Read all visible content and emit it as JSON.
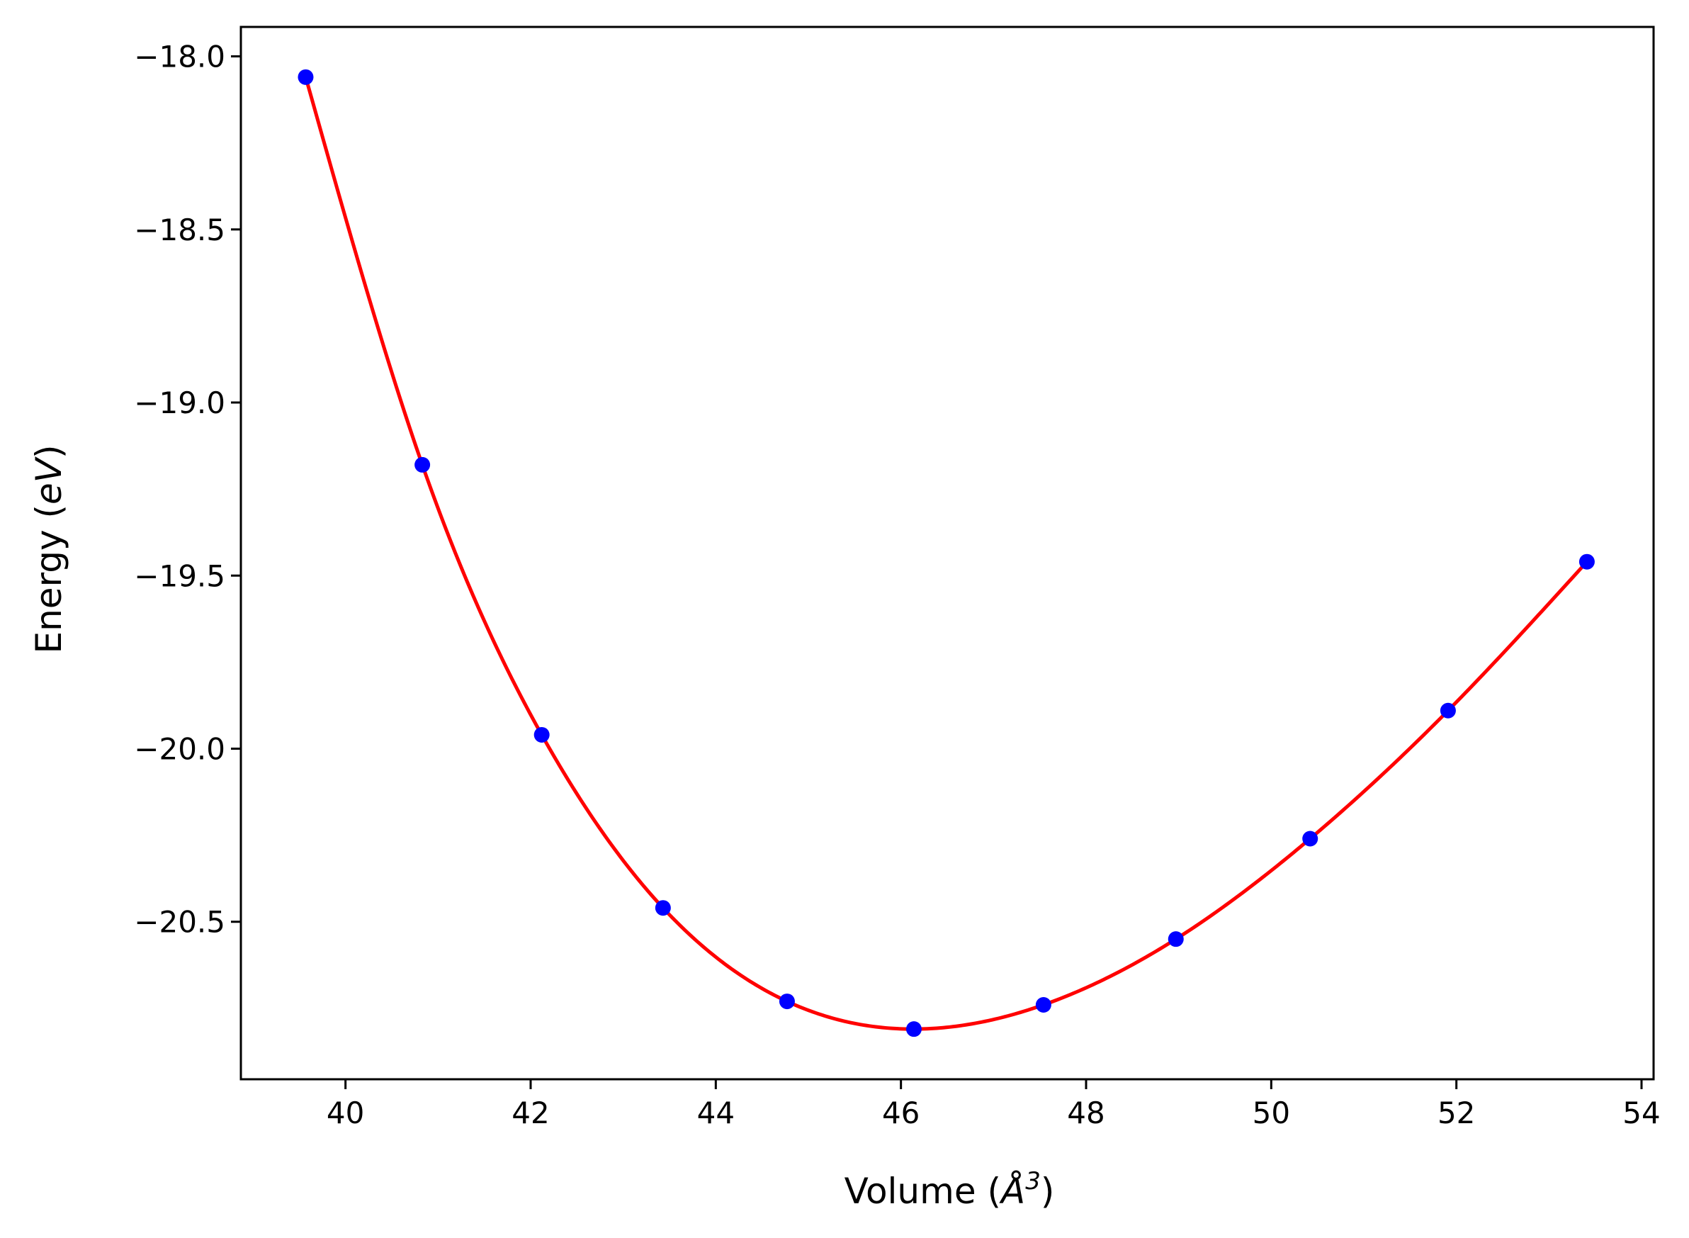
{
  "chart_data": {
    "type": "scatter",
    "title": "",
    "xlabel": "Volume (Å³)",
    "ylabel": "Energy (eV)",
    "xlabel_parts": {
      "prefix": "Volume (",
      "symbol": "Å",
      "exponent": "3",
      "suffix": ")"
    },
    "ylabel_parts": {
      "prefix": "Energy (",
      "unit": "eV",
      "suffix": ")"
    },
    "xlim": [
      38.87,
      54.13
    ],
    "ylim": [
      -20.955,
      -17.915
    ],
    "x_ticks": [
      40,
      42,
      44,
      46,
      48,
      50,
      52,
      54
    ],
    "x_tick_labels": [
      "40",
      "42",
      "44",
      "46",
      "48",
      "50",
      "52",
      "54"
    ],
    "y_ticks": [
      -18.0,
      -18.5,
      -19.0,
      -19.5,
      -20.0,
      -20.5
    ],
    "y_tick_labels": [
      "−18.0",
      "−18.5",
      "−19.0",
      "−19.5",
      "−20.0",
      "−20.5"
    ],
    "grid": false,
    "series": [
      {
        "kind": "points",
        "color": "#0000ff",
        "x": [
          39.57,
          40.83,
          42.12,
          43.43,
          44.77,
          46.14,
          47.54,
          48.97,
          50.42,
          51.91,
          53.41
        ],
        "y": [
          -18.06,
          -19.18,
          -19.96,
          -20.46,
          -20.73,
          -20.81,
          -20.74,
          -20.55,
          -20.26,
          -19.89,
          -19.46
        ]
      },
      {
        "kind": "fit-curve",
        "color": "#ff0000"
      }
    ],
    "colors": {
      "axes": "#000000",
      "background": "#ffffff"
    }
  }
}
